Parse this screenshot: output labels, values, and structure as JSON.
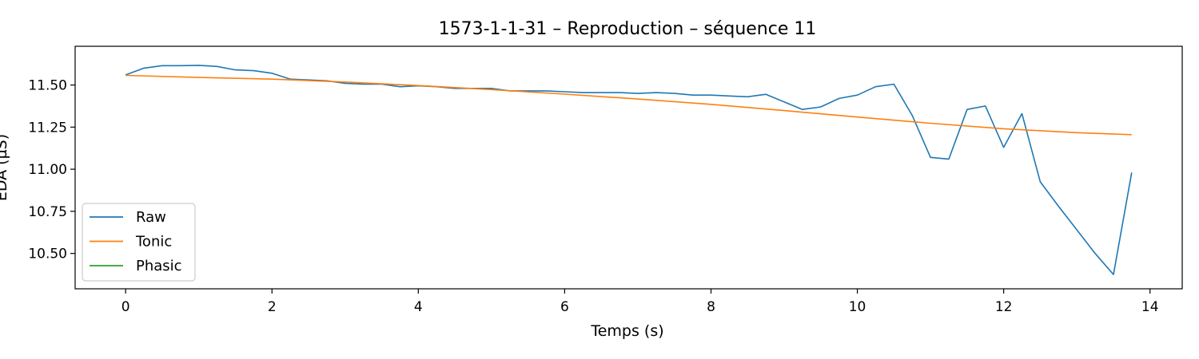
{
  "chart_data": {
    "type": "line",
    "title": "1573-1-1-31 – Reproduction – séquence 11",
    "xlabel": "Temps (s)",
    "ylabel": "EDA (µS)",
    "xlim": [
      -0.69,
      14.44
    ],
    "ylim": [
      10.29,
      11.73
    ],
    "xticks": [
      0,
      2,
      4,
      6,
      8,
      10,
      12,
      14
    ],
    "yticks": [
      10.5,
      10.75,
      11.0,
      11.25,
      11.5
    ],
    "ytick_labels": [
      "10.50",
      "10.75",
      "11.00",
      "11.25",
      "11.50"
    ],
    "grid": false,
    "legend_position": "lower-left",
    "series": [
      {
        "name": "Raw",
        "color": "#1f77b4",
        "x": [
          0,
          0.25,
          0.5,
          0.75,
          1.0,
          1.25,
          1.5,
          1.75,
          2.0,
          2.25,
          2.5,
          2.75,
          3.0,
          3.25,
          3.5,
          3.75,
          4.0,
          4.25,
          4.5,
          4.75,
          5.0,
          5.25,
          5.5,
          5.75,
          6.0,
          6.25,
          6.5,
          6.75,
          7.0,
          7.25,
          7.5,
          7.75,
          8.0,
          8.25,
          8.5,
          8.75,
          9.0,
          9.25,
          9.5,
          9.75,
          10.0,
          10.25,
          10.5,
          10.75,
          11.0,
          11.25,
          11.5,
          11.75,
          12.0,
          12.25,
          12.5,
          12.75,
          13.0,
          13.25,
          13.5,
          13.75
        ],
        "values": [
          11.56,
          11.6,
          11.615,
          11.615,
          11.617,
          11.61,
          11.59,
          11.585,
          11.57,
          11.535,
          11.53,
          11.525,
          11.51,
          11.505,
          11.505,
          11.49,
          11.495,
          11.49,
          11.48,
          11.48,
          11.48,
          11.465,
          11.465,
          11.465,
          11.46,
          11.455,
          11.455,
          11.455,
          11.45,
          11.455,
          11.45,
          11.44,
          11.44,
          11.435,
          11.43,
          11.445,
          11.4,
          11.355,
          11.37,
          11.42,
          11.44,
          11.49,
          11.505,
          11.32,
          11.07,
          11.06,
          11.355,
          11.375,
          11.13,
          11.33,
          10.925,
          10.78,
          10.64,
          10.5,
          10.375,
          10.98
        ]
      },
      {
        "name": "Tonic",
        "color": "#ff7f0e",
        "x": [
          0,
          1,
          2,
          3,
          4,
          5,
          6,
          7,
          8,
          9,
          10,
          11,
          12,
          13,
          13.75
        ],
        "values": [
          11.557,
          11.545,
          11.535,
          11.518,
          11.497,
          11.473,
          11.446,
          11.417,
          11.385,
          11.348,
          11.31,
          11.273,
          11.24,
          11.217,
          11.205
        ]
      },
      {
        "name": "Phasic",
        "color": "#2ca02c",
        "x": [],
        "values": []
      }
    ]
  }
}
